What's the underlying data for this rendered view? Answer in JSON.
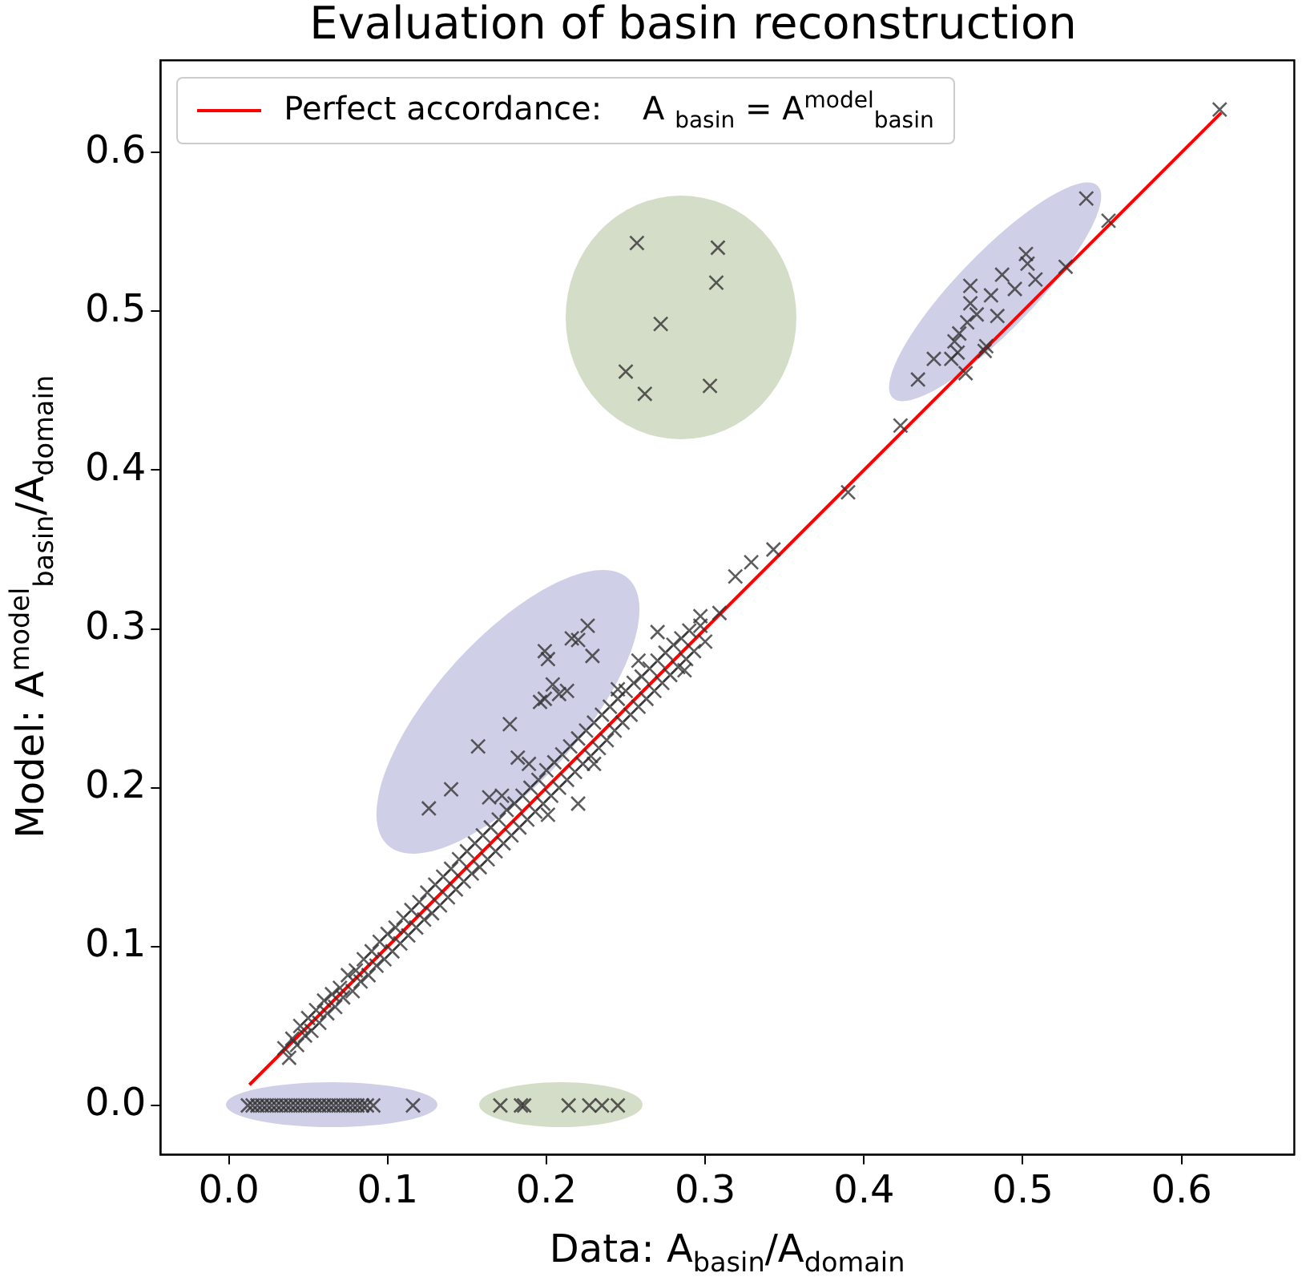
{
  "chart_data": {
    "type": "scatter",
    "title": "Evaluation of basin reconstruction",
    "xlabel": "Data: A$_{basin}$/A$_{domain}$",
    "ylabel": "Model: A$^{model}$$_{basin}$/A$_{domain}$",
    "xlim": [
      -0.043,
      0.671
    ],
    "ylim": [
      -0.031,
      0.658
    ],
    "xticks": [
      {
        "value": 0,
        "label": "0.0"
      },
      0.1,
      0.2,
      0.3,
      0.4,
      0.5,
      0.6
    ],
    "yticks": [
      {
        "value": 0,
        "label": "0.0"
      },
      0.1,
      0.2,
      0.3,
      0.4,
      0.5,
      0.6
    ],
    "grid": false,
    "legend": "top",
    "series": [
      {
        "type": "line",
        "name": "Perfect accordance:    A $_{basin}$ = A$^{model}$$_{basin}$",
        "color": "#ff0000",
        "x": [
          0.013,
          0.625
        ],
        "values": [
          0.013,
          0.625
        ]
      },
      {
        "color": "#333333",
        "marker": "cross",
        "x": [
          0.035,
          0.038,
          0.04,
          0.043,
          0.045,
          0.048,
          0.05,
          0.052,
          0.055,
          0.057,
          0.06,
          0.062,
          0.065,
          0.067,
          0.07,
          0.072,
          0.075,
          0.078,
          0.08,
          0.083,
          0.085,
          0.088,
          0.09,
          0.093,
          0.095,
          0.098,
          0.1,
          0.103,
          0.105,
          0.108,
          0.11,
          0.113,
          0.115,
          0.118,
          0.12,
          0.123,
          0.125,
          0.128,
          0.13,
          0.133,
          0.135,
          0.138,
          0.14,
          0.143,
          0.145,
          0.148,
          0.15,
          0.153,
          0.155,
          0.158,
          0.16,
          0.163,
          0.165,
          0.168,
          0.17,
          0.173,
          0.175,
          0.178,
          0.18,
          0.183,
          0.185,
          0.188,
          0.19,
          0.193,
          0.195,
          0.198,
          0.2,
          0.203,
          0.205,
          0.208,
          0.21,
          0.213,
          0.215,
          0.218,
          0.22,
          0.223,
          0.225,
          0.228,
          0.23,
          0.233,
          0.235,
          0.238,
          0.24,
          0.243,
          0.245,
          0.248,
          0.25,
          0.253,
          0.255,
          0.258,
          0.26,
          0.263,
          0.265,
          0.268,
          0.27,
          0.273,
          0.275,
          0.278,
          0.28,
          0.283,
          0.285,
          0.288,
          0.29,
          0.293,
          0.297,
          0.3,
          0.287,
          0.23,
          0.22,
          0.201,
          0.245,
          0.258,
          0.27,
          0.319,
          0.329,
          0.343,
          0.309,
          0.297,
          0.39,
          0.423,
          0.464,
          0.476,
          0.527,
          0.554,
          0.624,
          0.126,
          0.14,
          0.157,
          0.177,
          0.182,
          0.189,
          0.164,
          0.172,
          0.196,
          0.199,
          0.204,
          0.213,
          0.208,
          0.199,
          0.201,
          0.216,
          0.22,
          0.226,
          0.229,
          0.257,
          0.308,
          0.307,
          0.272,
          0.25,
          0.262,
          0.303,
          0.54,
          0.502,
          0.503,
          0.487,
          0.508,
          0.467,
          0.495,
          0.48,
          0.467,
          0.471,
          0.465,
          0.484,
          0.46,
          0.457,
          0.459,
          0.444,
          0.455,
          0.434,
          0.477,
          0.012,
          0.015,
          0.018,
          0.021,
          0.024,
          0.027,
          0.03,
          0.033,
          0.036,
          0.039,
          0.042,
          0.045,
          0.048,
          0.051,
          0.054,
          0.057,
          0.06,
          0.063,
          0.066,
          0.069,
          0.072,
          0.075,
          0.078,
          0.081,
          0.084,
          0.087,
          0.091,
          0.116,
          0.171,
          0.184,
          0.186,
          0.214,
          0.227,
          0.235,
          0.245
        ],
        "values": [
          0.036,
          0.03,
          0.042,
          0.038,
          0.05,
          0.044,
          0.055,
          0.047,
          0.06,
          0.052,
          0.066,
          0.058,
          0.07,
          0.062,
          0.074,
          0.068,
          0.082,
          0.072,
          0.085,
          0.078,
          0.092,
          0.082,
          0.097,
          0.088,
          0.103,
          0.092,
          0.108,
          0.097,
          0.112,
          0.102,
          0.118,
          0.107,
          0.123,
          0.112,
          0.128,
          0.117,
          0.134,
          0.121,
          0.139,
          0.126,
          0.144,
          0.131,
          0.149,
          0.136,
          0.155,
          0.141,
          0.16,
          0.146,
          0.165,
          0.15,
          0.17,
          0.155,
          0.175,
          0.16,
          0.18,
          0.165,
          0.186,
          0.17,
          0.19,
          0.175,
          0.195,
          0.18,
          0.2,
          0.185,
          0.205,
          0.19,
          0.211,
          0.195,
          0.216,
          0.2,
          0.221,
          0.205,
          0.226,
          0.21,
          0.231,
          0.215,
          0.236,
          0.22,
          0.241,
          0.225,
          0.246,
          0.23,
          0.251,
          0.236,
          0.256,
          0.241,
          0.261,
          0.246,
          0.266,
          0.251,
          0.27,
          0.256,
          0.275,
          0.261,
          0.28,
          0.266,
          0.285,
          0.271,
          0.29,
          0.276,
          0.294,
          0.281,
          0.299,
          0.286,
          0.302,
          0.292,
          0.274,
          0.215,
          0.19,
          0.183,
          0.262,
          0.28,
          0.298,
          0.333,
          0.342,
          0.35,
          0.31,
          0.308,
          0.386,
          0.428,
          0.461,
          0.475,
          0.528,
          0.557,
          0.627,
          0.187,
          0.199,
          0.226,
          0.24,
          0.219,
          0.215,
          0.194,
          0.195,
          0.254,
          0.256,
          0.265,
          0.261,
          0.259,
          0.286,
          0.281,
          0.294,
          0.293,
          0.302,
          0.283,
          0.543,
          0.54,
          0.518,
          0.492,
          0.462,
          0.448,
          0.453,
          0.571,
          0.536,
          0.53,
          0.523,
          0.52,
          0.516,
          0.514,
          0.51,
          0.505,
          0.498,
          0.493,
          0.497,
          0.486,
          0.481,
          0.474,
          0.47,
          0.47,
          0.457,
          0.478,
          0,
          0,
          0,
          0,
          0,
          0,
          0,
          0,
          0,
          0,
          0,
          0,
          0,
          0,
          0,
          0,
          0,
          0,
          0,
          0,
          0,
          0,
          0,
          0,
          0,
          0,
          0,
          0,
          0,
          0,
          0,
          0,
          0,
          0,
          0
        ]
      }
    ]
  }
}
